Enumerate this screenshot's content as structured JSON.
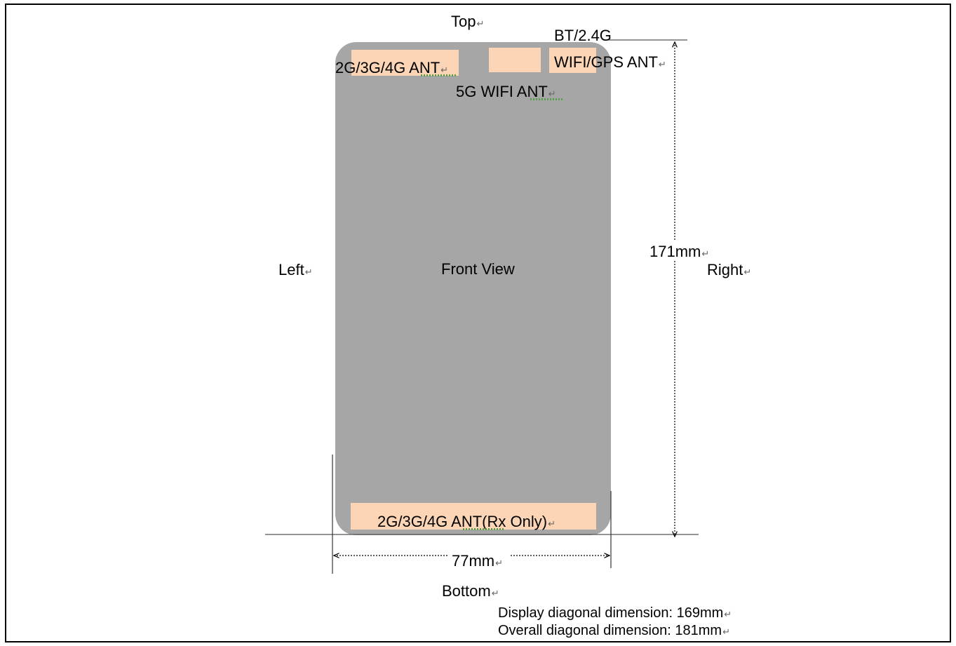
{
  "orientation": {
    "top": "Top",
    "bottom": "Bottom",
    "left": "Left",
    "right": "Right"
  },
  "device": {
    "view_label": "Front View",
    "color": "#a6a6a6"
  },
  "antennas": {
    "main_top": "2G/3G/4G ANT",
    "wifi_5g": "5G WIFI ANT",
    "bt_line1": "BT/2.4G",
    "bt_line2": "WIFI/GPS ANT",
    "main_bottom": "2G/3G/4G ANT(Rx Only)",
    "color": "#fbd5b5"
  },
  "dimensions": {
    "width": "77mm",
    "height": "171mm"
  },
  "notes": {
    "display_diagonal": "Display diagonal dimension: 169mm",
    "overall_diagonal": "Overall diagonal dimension: 181mm"
  },
  "paragraph_mark": "↵"
}
